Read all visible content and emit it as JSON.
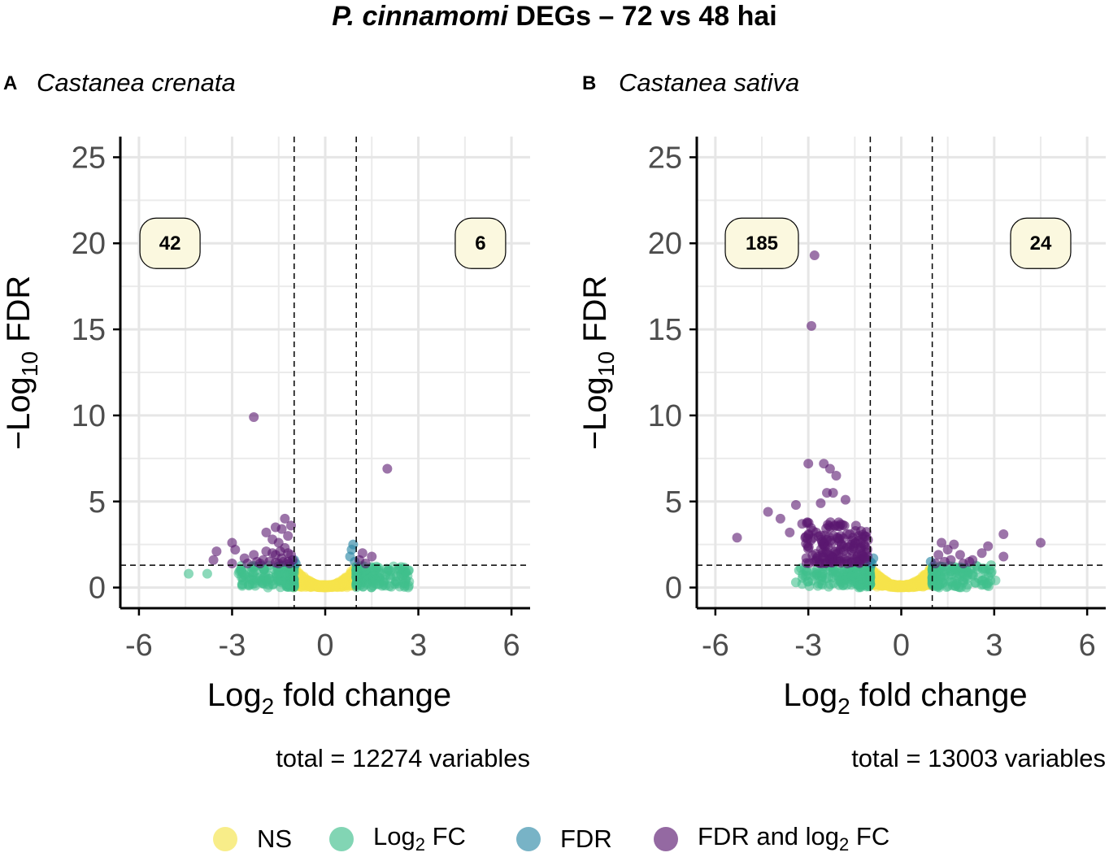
{
  "title_italic": "P. cinnamomi",
  "title_rest": " DEGs – 72 vs 48 hai",
  "colors": {
    "NS": "#f5e44a",
    "Log2 FC": "#3fbf8c",
    "FDR": "#2f8aa8",
    "FDR and log2 FC": "#5a1870",
    "label_box": "#fbf8df",
    "grid": "#ebebeb"
  },
  "legend": [
    {
      "key": "NS",
      "label_pre": "NS",
      "label_sub": "",
      "label_post": ""
    },
    {
      "key": "Log2 FC",
      "label_pre": "Log",
      "label_sub": "2",
      "label_post": " FC"
    },
    {
      "key": "FDR",
      "label_pre": "FDR",
      "label_sub": "",
      "label_post": ""
    },
    {
      "key": "FDR and log2 FC",
      "label_pre": "FDR and log",
      "label_sub": "2",
      "label_post": " FC"
    }
  ],
  "chart_data": [
    {
      "type": "scatter",
      "panel": "A",
      "title": "Castanea crenata",
      "xlabel": "Log2 fold change",
      "ylabel": "−Log10 FDR",
      "xlim": [
        -6.6,
        6.6
      ],
      "ylim": [
        -1.2,
        26.2
      ],
      "xticks": [
        -6,
        -3,
        0,
        3,
        6
      ],
      "yticks": [
        0,
        5,
        10,
        15,
        20,
        25
      ],
      "fc_cutoff": [
        -1,
        1
      ],
      "fdr_cutoff": 1.3,
      "count_labels": [
        {
          "x": -5,
          "y": 20,
          "text": "42"
        },
        {
          "x": 5,
          "y": 20,
          "text": "6"
        }
      ],
      "caption": "total = 12274 variables",
      "highlight_points": [
        {
          "x": -2.3,
          "y": 9.9
        },
        {
          "x": 2.0,
          "y": 6.9
        },
        {
          "x": -1.3,
          "y": 4.0
        },
        {
          "x": -1.6,
          "y": 3.5
        },
        {
          "x": -1.4,
          "y": 3.4
        },
        {
          "x": -1.2,
          "y": 3.0
        },
        {
          "x": -1.9,
          "y": 3.2
        },
        {
          "x": -1.7,
          "y": 2.8
        },
        {
          "x": -1.5,
          "y": 2.6
        },
        {
          "x": -1.1,
          "y": 3.6
        },
        {
          "x": -3.0,
          "y": 2.6
        },
        {
          "x": -2.9,
          "y": 2.2
        },
        {
          "x": -3.5,
          "y": 2.1
        },
        {
          "x": -3.6,
          "y": 1.6
        },
        {
          "x": -3.0,
          "y": 1.4
        },
        {
          "x": -2.6,
          "y": 1.7
        },
        {
          "x": -2.3,
          "y": 1.9
        },
        {
          "x": -2.0,
          "y": 1.6
        },
        {
          "x": -1.8,
          "y": 1.5
        },
        {
          "x": -1.6,
          "y": 1.9
        },
        {
          "x": -1.4,
          "y": 1.7
        },
        {
          "x": -1.2,
          "y": 1.5
        },
        {
          "x": -1.1,
          "y": 1.9
        },
        {
          "x": -2.5,
          "y": 1.4
        },
        {
          "x": -1.9,
          "y": 2.1
        },
        {
          "x": -1.3,
          "y": 2.3
        },
        {
          "x": -1.7,
          "y": 2.0
        },
        {
          "x": -2.1,
          "y": 1.4
        },
        {
          "x": -1.5,
          "y": 1.4
        },
        {
          "x": -1.2,
          "y": 2.0
        },
        {
          "x": -1.05,
          "y": 1.6
        },
        {
          "x": -1.35,
          "y": 1.5
        },
        {
          "x": -2.2,
          "y": 1.5
        },
        {
          "x": -1.45,
          "y": 2.1
        },
        {
          "x": -1.15,
          "y": 1.4
        },
        {
          "x": -1.6,
          "y": 1.45
        },
        {
          "x": 1.2,
          "y": 2.0
        },
        {
          "x": 1.5,
          "y": 1.8
        },
        {
          "x": 1.1,
          "y": 1.6
        },
        {
          "x": 1.3,
          "y": 1.4
        }
      ],
      "fdr_points": [
        {
          "x": 0.9,
          "y": 2.5
        },
        {
          "x": 0.8,
          "y": 1.8
        },
        {
          "x": 0.95,
          "y": 1.5
        },
        {
          "x": -1.0,
          "y": 1.6
        },
        {
          "x": -0.95,
          "y": 1.4
        },
        {
          "x": 0.85,
          "y": 2.2
        }
      ],
      "fc_points": [
        {
          "x": -4.4,
          "y": 0.8
        },
        {
          "x": -3.8,
          "y": 0.8
        },
        {
          "x": 2.6,
          "y": 0.9
        },
        {
          "x": 2.4,
          "y": 1.1
        }
      ]
    },
    {
      "type": "scatter",
      "panel": "B",
      "title": "Castanea sativa",
      "xlabel": "Log2 fold change",
      "ylabel": "−Log10 FDR",
      "xlim": [
        -6.6,
        6.6
      ],
      "ylim": [
        -1.2,
        26.2
      ],
      "xticks": [
        -6,
        -3,
        0,
        3,
        6
      ],
      "yticks": [
        0,
        5,
        10,
        15,
        20,
        25
      ],
      "fc_cutoff": [
        -1,
        1
      ],
      "fdr_cutoff": 1.3,
      "count_labels": [
        {
          "x": -4.5,
          "y": 20,
          "text": "185"
        },
        {
          "x": 4.5,
          "y": 20,
          "text": "24"
        }
      ],
      "caption": "total = 13003 variables",
      "highlight_points": [
        {
          "x": -2.8,
          "y": 19.3
        },
        {
          "x": -2.9,
          "y": 15.2
        },
        {
          "x": -3.0,
          "y": 7.2
        },
        {
          "x": -2.5,
          "y": 7.2
        },
        {
          "x": -2.3,
          "y": 6.9
        },
        {
          "x": -2.1,
          "y": 6.5
        },
        {
          "x": -2.4,
          "y": 5.5
        },
        {
          "x": -2.2,
          "y": 5.5
        },
        {
          "x": -2.6,
          "y": 4.9
        },
        {
          "x": -1.8,
          "y": 5.1
        },
        {
          "x": -3.4,
          "y": 4.8
        },
        {
          "x": -4.3,
          "y": 4.4
        },
        {
          "x": -3.9,
          "y": 4.0
        },
        {
          "x": -5.3,
          "y": 2.9
        },
        {
          "x": -3.6,
          "y": 3.2
        },
        {
          "x": -3.2,
          "y": 3.7
        },
        {
          "x": -3.1,
          "y": 2.9
        },
        {
          "x": 4.5,
          "y": 2.6
        },
        {
          "x": 3.3,
          "y": 3.1
        },
        {
          "x": 3.3,
          "y": 1.8
        },
        {
          "x": 2.8,
          "y": 2.4
        },
        {
          "x": 2.6,
          "y": 2.0
        },
        {
          "x": 2.3,
          "y": 1.6
        },
        {
          "x": 2.0,
          "y": 1.4
        },
        {
          "x": 1.7,
          "y": 2.5
        },
        {
          "x": 1.5,
          "y": 2.2
        },
        {
          "x": 1.3,
          "y": 2.6
        },
        {
          "x": 1.2,
          "y": 1.9
        },
        {
          "x": 1.6,
          "y": 1.6
        },
        {
          "x": 1.9,
          "y": 1.9
        },
        {
          "x": 1.4,
          "y": 1.5
        },
        {
          "x": 1.1,
          "y": 1.4
        },
        {
          "x": 2.2,
          "y": 1.5
        }
      ],
      "fdr_points": [
        {
          "x": -1.0,
          "y": 1.5
        },
        {
          "x": -0.95,
          "y": 1.4
        },
        {
          "x": 0.95,
          "y": 1.5
        },
        {
          "x": -0.9,
          "y": 1.7
        }
      ],
      "fc_points": [
        {
          "x": -3.3,
          "y": 1.0
        },
        {
          "x": -3.4,
          "y": 0.3
        },
        {
          "x": 2.9,
          "y": 1.3
        },
        {
          "x": 2.6,
          "y": 0.4
        }
      ],
      "dense_cluster": {
        "x_range": [
          -3.1,
          -1.05
        ],
        "y_range": [
          1.4,
          3.8
        ],
        "n": 150
      }
    }
  ]
}
